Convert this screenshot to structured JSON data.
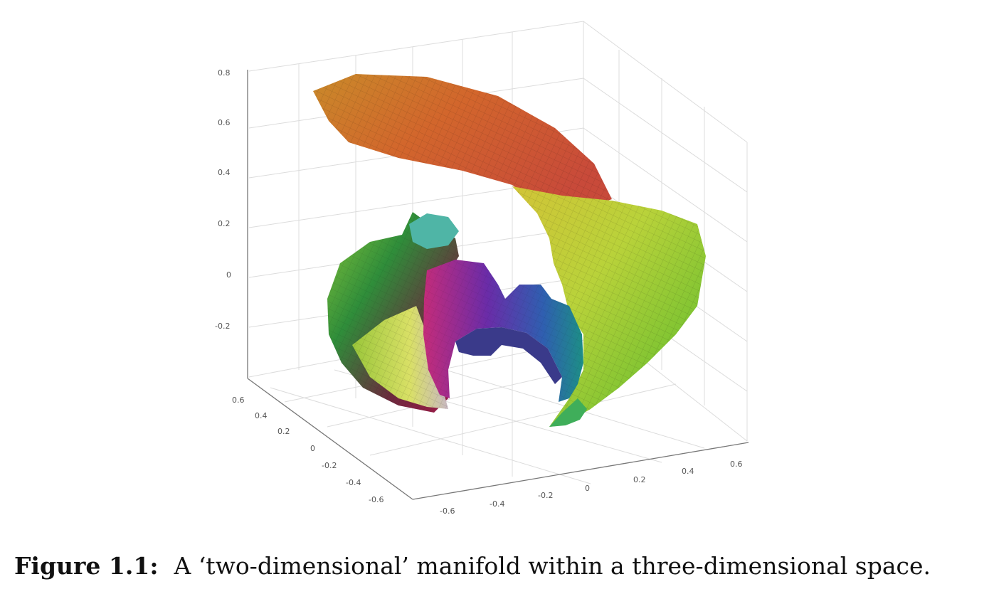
{
  "figure": {
    "z_ticks": [
      "0.8",
      "0.6",
      "0.4",
      "0.2",
      "0",
      "-0.2"
    ],
    "left_ticks": [
      "0.6",
      "0.4",
      "0.2",
      "0",
      "-0.2",
      "-0.4",
      "-0.6"
    ],
    "right_ticks": [
      "-0.6",
      "-0.4",
      "-0.2",
      "0",
      "0.2",
      "0.4",
      "0.6"
    ]
  },
  "caption": {
    "label": "Figure 1.1:",
    "text": "A ‘two-dimensional’ manifold within a three-dimensional space."
  }
}
